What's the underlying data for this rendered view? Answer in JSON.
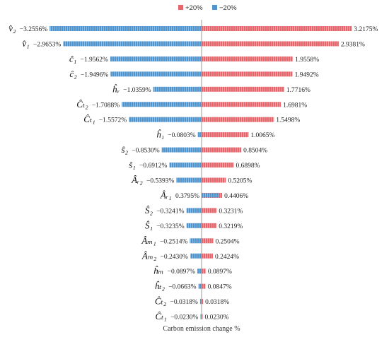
{
  "chart_data": {
    "type": "bar",
    "orientation": "horizontal-tornado",
    "title": "",
    "xlabel": "Carbon emission change %",
    "ylabel": "",
    "legend": {
      "placement": "top-center",
      "entries": [
        {
          "label": "+20%",
          "color": "#e8666b"
        },
        {
          "label": "−20%",
          "color": "#4f94cd"
        }
      ]
    },
    "categories": [
      "v̂₂",
      "v̂₁",
      "ĉ₁",
      "ĉ₂",
      "ĥᵥ",
      "Ĉₜ₂",
      "Ĉₜ₁",
      "ĥ₁",
      "ŝ₂",
      "ŝ₁",
      "Âᵣ₂",
      "Âᵣ₁",
      "Ŝ₂",
      "Ŝ₁",
      "Âₘ₁",
      "Âₘ₂",
      "ĥₘ",
      "ĥₜ₂",
      "Ĉₜ₂",
      "Ĉₜ₁"
    ],
    "series": [
      {
        "name": "+20%",
        "values": [
          3.2175,
          2.9381,
          1.9558,
          1.9492,
          1.7716,
          1.6981,
          1.5498,
          1.0065,
          0.8504,
          0.6898,
          0.5205,
          0.4406,
          0.3231,
          0.3219,
          0.2504,
          0.2424,
          0.0897,
          0.0847,
          0.0318,
          0.023
        ],
        "labels": [
          "3.2175%",
          "2.9381%",
          "1.9558%",
          "1.9492%",
          "1.7716%",
          "1.6981%",
          "1.5498%",
          "1.0065%",
          "0.8504%",
          "0.6898%",
          "0.5205%",
          "0.4406%",
          "0.3231%",
          "0.3219%",
          "0.2504%",
          "0.2424%",
          "0.0897%",
          "0.0847%",
          "0.0318%",
          "0.0230%"
        ]
      },
      {
        "name": "−20%",
        "values": [
          -3.2556,
          -2.9653,
          -1.9562,
          -1.9496,
          -1.0359,
          -1.7088,
          -1.5572,
          -0.0803,
          -0.853,
          -0.6912,
          -0.5393,
          0.3795,
          -0.3241,
          -0.3235,
          -0.2514,
          -0.243,
          -0.0897,
          -0.0663,
          -0.0318,
          -0.023
        ],
        "labels": [
          "−3.2556%",
          "−2.9653%",
          "−1.9562%",
          "−1.9496%",
          "−1.0359%",
          "−1.7088%",
          "−1.5572%",
          "−0.0803%",
          "−0.8530%",
          "−0.6912%",
          "−0.5393%",
          "0.3795%",
          "−0.3241%",
          "−0.3235%",
          "−0.2514%",
          "−0.2430%",
          "−0.0897%",
          "−0.0663%",
          "−0.0318%",
          "−0.0230%"
        ]
      }
    ],
    "xlim": [
      -3.3,
      3.3
    ],
    "grid": false
  }
}
